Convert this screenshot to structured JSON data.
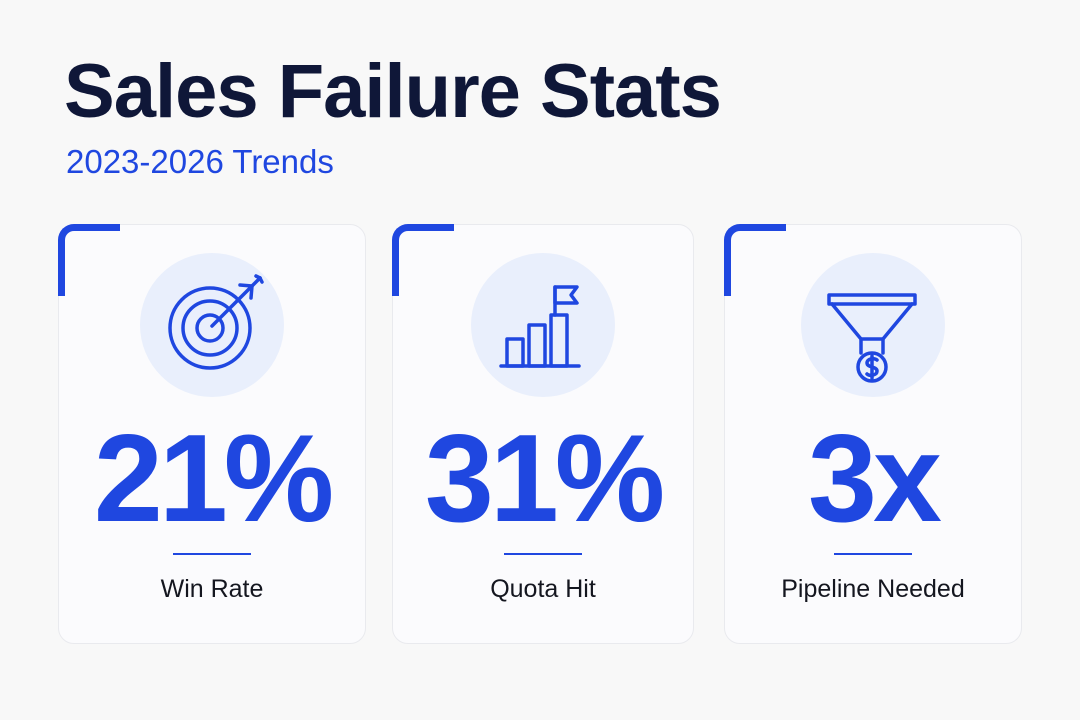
{
  "header": {
    "title": "Sales Failure Stats",
    "subtitle": "2023-2026 Trends"
  },
  "colors": {
    "accent": "#1f47e0",
    "title": "#0f1738",
    "icon_background": "#e9effc",
    "card_background": "#fbfbfd",
    "page_background": "#f8f8f8"
  },
  "cards": [
    {
      "icon": "target-with-arrow-icon",
      "value": "21%",
      "label": "Win Rate"
    },
    {
      "icon": "bar-chart-with-flag-icon",
      "value": "31%",
      "label": "Quota Hit"
    },
    {
      "icon": "sales-funnel-with-dollar-icon",
      "value": "3x",
      "label": "Pipeline Needed"
    }
  ]
}
